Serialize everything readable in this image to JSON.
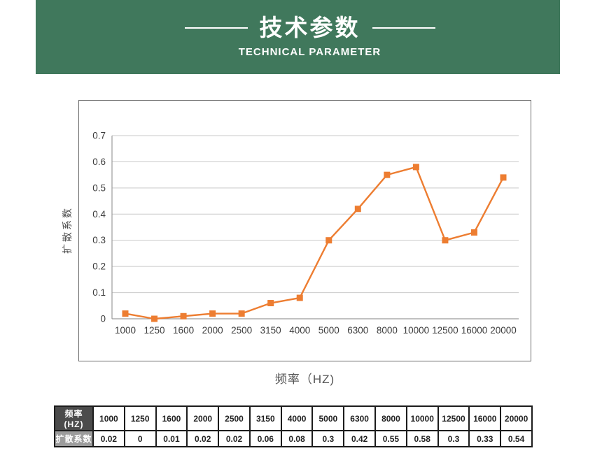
{
  "header": {
    "title": "技术参数",
    "subtitle": "TECHNICAL PARAMETER",
    "band_color": "#40785C"
  },
  "chart_data": {
    "type": "line",
    "title": "",
    "xlabel": "频率（HZ)",
    "ylabel": "扩散系数",
    "categories": [
      "1000",
      "1250",
      "1600",
      "2000",
      "2500",
      "3150",
      "4000",
      "5000",
      "6300",
      "8000",
      "10000",
      "12500",
      "16000",
      "20000"
    ],
    "values": [
      0.02,
      0,
      0.01,
      0.02,
      0.02,
      0.06,
      0.08,
      0.3,
      0.42,
      0.55,
      0.58,
      0.3,
      0.33,
      0.54
    ],
    "ylim": [
      0,
      0.7
    ],
    "ytick_step": 0.1,
    "grid": true,
    "legend": "none",
    "line_color": "#ED7D31",
    "marker": "square",
    "gridline_color": "#C9C9C9",
    "axis_color": "#9B9B9B",
    "tick_label_color": "#3D3D3D"
  },
  "table": {
    "row1_header": "频率(HZ)",
    "row2_header": "扩散系数",
    "frequencies": [
      "1000",
      "1250",
      "1600",
      "2000",
      "2500",
      "3150",
      "4000",
      "5000",
      "6300",
      "8000",
      "10000",
      "12500",
      "16000",
      "20000"
    ],
    "values": [
      "0.02",
      "0",
      "0.01",
      "0.02",
      "0.02",
      "0.06",
      "0.08",
      "0.3",
      "0.42",
      "0.55",
      "0.58",
      "0.3",
      "0.33",
      "0.54"
    ]
  }
}
